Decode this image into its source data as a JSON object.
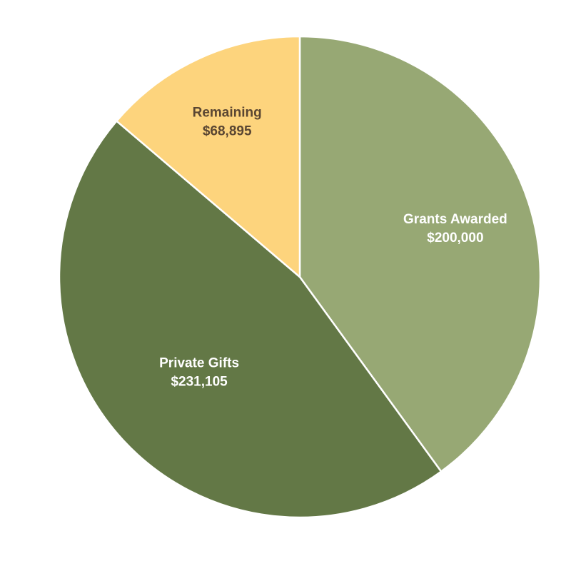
{
  "chart_data": {
    "type": "pie",
    "slices": [
      {
        "label": "Grants Awarded",
        "value_label": "$200,000",
        "value": 200000,
        "color": "#97a874",
        "text_color": "#ffffff"
      },
      {
        "label": "Private Gifts",
        "value_label": "$231,105",
        "value": 231105,
        "color": "#637846",
        "text_color": "#ffffff"
      },
      {
        "label": "Remaining",
        "value_label": "$68,895",
        "value": 68895,
        "color": "#fdd47d",
        "text_color": "#5a4632"
      }
    ],
    "start_angle": "12 o'clock",
    "direction": "clockwise",
    "legend": "none"
  }
}
